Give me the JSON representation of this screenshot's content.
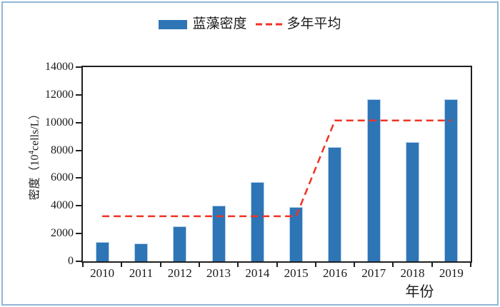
{
  "chart": {
    "y_axis": {
      "title_prefix": "密度（10",
      "title_sup": "4",
      "title_suffix": "cells/L）",
      "tick_labels": [
        "0",
        "2000",
        "4000",
        "6000",
        "8000",
        "10000",
        "12000",
        "14000"
      ]
    },
    "x_axis": {
      "title": "年份"
    }
  },
  "chart_data": {
    "type": "bar",
    "title": "",
    "xlabel": "年份",
    "ylabel": "密度（10⁴cells/L）",
    "categories": [
      "2010",
      "2011",
      "2012",
      "2013",
      "2014",
      "2015",
      "2016",
      "2017",
      "2018",
      "2019"
    ],
    "series": [
      {
        "name": "蓝藻密度",
        "type": "bar",
        "color": "#2e75b6",
        "values": [
          1400,
          1300,
          2500,
          4000,
          5700,
          3900,
          8250,
          11700,
          8600,
          11700
        ]
      },
      {
        "name": "多年平均",
        "type": "line",
        "style": "dashed",
        "color": "#ef3323",
        "values": [
          3250,
          3250,
          3250,
          3250,
          3250,
          3250,
          10150,
          10150,
          10150,
          10150
        ]
      }
    ],
    "ylim": [
      0,
      14000
    ],
    "ytick_step": 2000,
    "grid": false,
    "legend_position": "top-center"
  },
  "colors": {
    "frame_border": "#92b6d5",
    "axis": "#1f1f1f",
    "bar_fill": "#2e75b6",
    "bar_edge": "#b5d1ec",
    "line_red": "#ef3323"
  }
}
